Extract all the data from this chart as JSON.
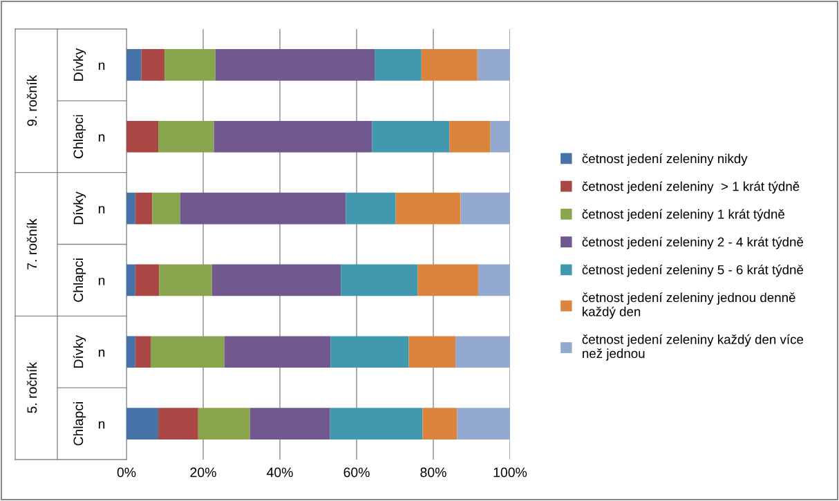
{
  "chart_data": {
    "type": "bar",
    "orientation": "horizontal",
    "stacked": true,
    "categories": [
      "n",
      "n",
      "n",
      "n",
      "n",
      "n"
    ],
    "annotations": [
      "Dívky",
      "Chlapci",
      "Dívky",
      "Chlapci",
      "Dívky",
      "Chlapci",
      "9. ročník",
      "7. ročník",
      "5. ročník"
    ],
    "series": [
      {
        "name": "četnost jedení zeleniny nikdy",
        "color": "#4572a7",
        "values": [
          3.9,
          0,
          2.3,
          2.3,
          2.3,
          8.3
        ]
      },
      {
        "name": "četnost jedení zeleniny  > 1 krát týdně",
        "color": "#aa4643",
        "values": [
          6.0,
          8.3,
          4.4,
          6.2,
          4.0,
          10.4
        ]
      },
      {
        "name": "četnost jedení zeleniny 1 krát týdně",
        "color": "#89a54e",
        "values": [
          13.3,
          14.5,
          7.3,
          13.8,
          19.2,
          13.5
        ]
      },
      {
        "name": "četnost jedení zeleniny 2 - 4 krát týdně",
        "color": "#71588f",
        "values": [
          41.5,
          41.2,
          43.2,
          33.6,
          27.7,
          20.9
        ]
      },
      {
        "name": "četnost jedení zeleniny 5 - 6 krát týdně",
        "color": "#4198af",
        "values": [
          12.2,
          20.2,
          13.0,
          20.0,
          20.4,
          24.1
        ]
      },
      {
        "name": "četnost jedení zeleniny jednou denně  každý den",
        "color": "#db843d",
        "values": [
          14.6,
          10.7,
          16.9,
          15.8,
          12.2,
          9.0
        ]
      },
      {
        "name": "četnost jedení zeleniny každý den více než jednou",
        "color": "#93a9cf",
        "values": [
          8.5,
          5.1,
          12.9,
          8.3,
          14.2,
          13.8
        ]
      }
    ],
    "xlim": [
      0,
      100
    ],
    "xticks": [
      {
        "value": 0,
        "label": "0%"
      },
      {
        "value": 20,
        "label": "20%"
      },
      {
        "value": 40,
        "label": "40%"
      },
      {
        "value": 60,
        "label": "60%"
      },
      {
        "value": 80,
        "label": "80%"
      },
      {
        "value": 100,
        "label": "100%"
      }
    ],
    "grid": "x",
    "legend": "right"
  }
}
